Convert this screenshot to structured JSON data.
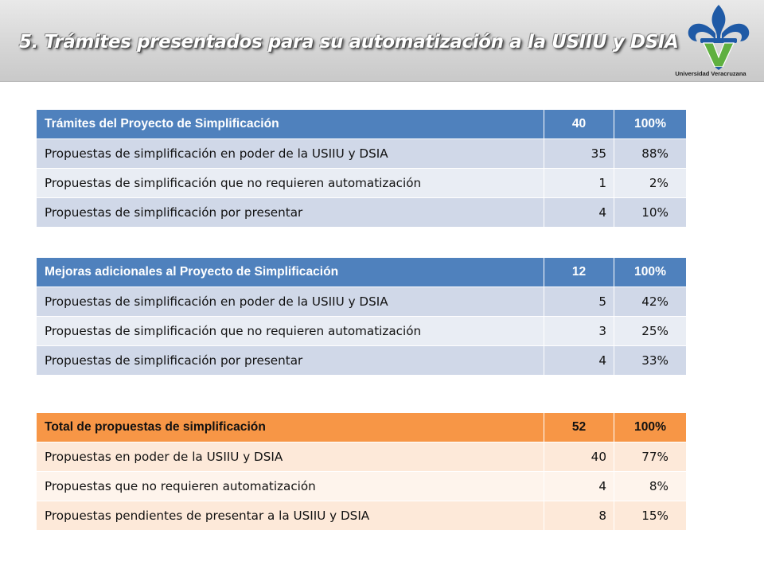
{
  "slide": {
    "title": "5. Trámites presentados para su automatización a la USIIU y DSIA",
    "logo_caption": "Universidad Veracruzana",
    "logo_icon": "fleur-de-lis-uv-logo",
    "colors": {
      "blue_header": "#4f81bd",
      "orange_header": "#f79646",
      "logo_blue": "#1f5aa6",
      "logo_green": "#5fb040"
    }
  },
  "tables": [
    {
      "header": {
        "label": "Trámites  del Proyecto de Simplificación",
        "count": "40",
        "percent": "100%"
      },
      "rows": [
        {
          "label": "Propuestas de simplificación en poder de la USIIU y DSIA",
          "count": "35",
          "percent": "88%"
        },
        {
          "label": "Propuestas de simplificación que no requieren automatización",
          "count": "1",
          "percent": "2%"
        },
        {
          "label": "Propuestas de simplificación por presentar",
          "count": "4",
          "percent": "10%"
        }
      ]
    },
    {
      "header": {
        "label": "Mejoras adicionales al Proyecto de Simplificación",
        "count": "12",
        "percent": "100%"
      },
      "rows": [
        {
          "label": "Propuestas de simplificación en poder de la USIIU y DSIA",
          "count": "5",
          "percent": "42%"
        },
        {
          "label": "Propuestas de simplificación que no requieren automatización",
          "count": "3",
          "percent": "25%"
        },
        {
          "label": "Propuestas de simplificación por presentar",
          "count": "4",
          "percent": "33%"
        }
      ]
    },
    {
      "header": {
        "label": "Total de propuestas de simplificación",
        "count": "52",
        "percent": "100%"
      },
      "rows": [
        {
          "label": "Propuestas en poder de la USIIU y DSIA",
          "count": "40",
          "percent": "77%"
        },
        {
          "label": "Propuestas que no requieren automatización",
          "count": "4",
          "percent": "8%"
        },
        {
          "label": "Propuestas pendientes de presentar a la USIIU y DSIA",
          "count": "8",
          "percent": "15%"
        }
      ]
    }
  ]
}
